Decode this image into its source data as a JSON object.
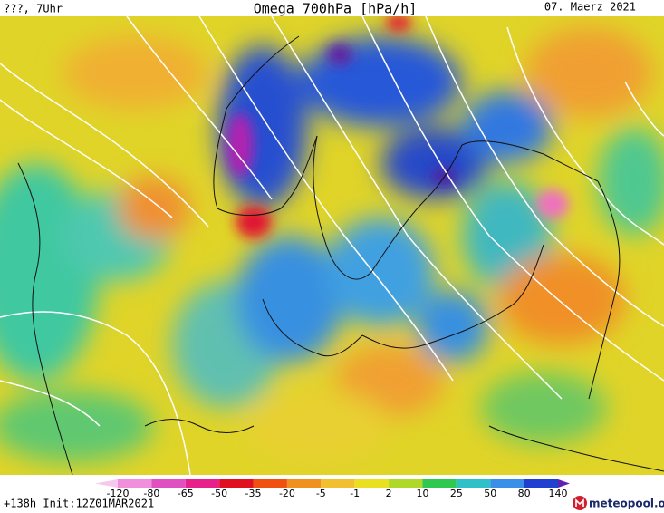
{
  "header": {
    "left": "???, 7Uhr",
    "title": "Omega 700hPa [hPa/h]",
    "date": "07. Maerz 2021"
  },
  "colorbar": {
    "labels": [
      -120,
      -80,
      -65,
      -50,
      -35,
      -20,
      -5,
      -1,
      2,
      10,
      25,
      50,
      80,
      140
    ],
    "colors": [
      "#f6c8ee",
      "#f090dc",
      "#e050c0",
      "#e8208c",
      "#e01020",
      "#f05010",
      "#f09020",
      "#f0c030",
      "#e8e020",
      "#b0d828",
      "#30c850",
      "#30c0c8",
      "#3890e8",
      "#2040d0",
      "#6020b0",
      "#c020a0"
    ]
  },
  "footer": {
    "run": "+138h Init:12Z01MAR2021",
    "logo": "meteopool.org"
  }
}
